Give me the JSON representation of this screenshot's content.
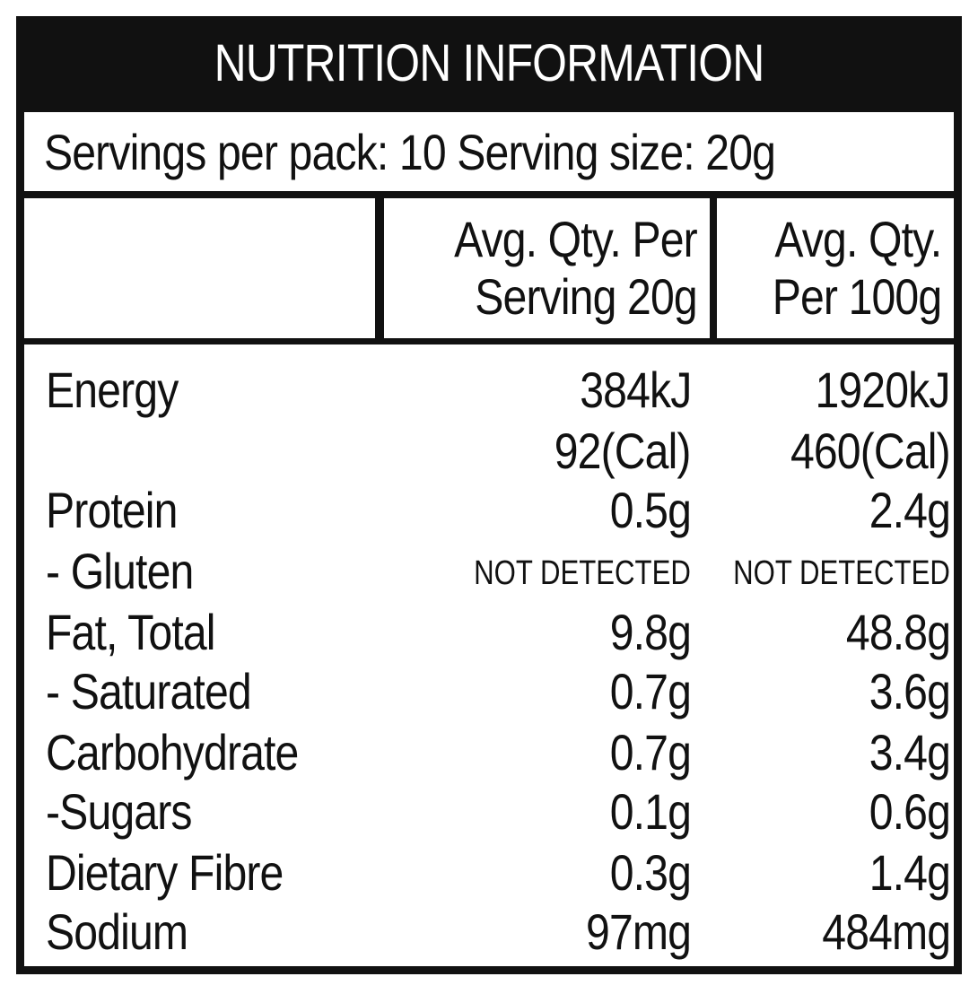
{
  "panel": {
    "title": "NUTRITION INFORMATION",
    "servings_line": "Servings per pack: 10 Serving size: 20g"
  },
  "columns": {
    "per_serving_line1": "Avg. Qty. Per",
    "per_serving_line2": "Serving 20g",
    "per_100g_line1": "Avg. Qty.",
    "per_100g_line2": "Per 100g"
  },
  "rows": [
    {
      "name": "Energy",
      "per_serving": "384kJ",
      "per_100g": "1920kJ"
    },
    {
      "name": "",
      "per_serving": "92(Cal)",
      "per_100g": "460(Cal)"
    },
    {
      "name": "Protein",
      "per_serving": "0.5g",
      "per_100g": "2.4g"
    },
    {
      "name": "- Gluten",
      "per_serving": "NOT DETECTED",
      "per_100g": "NOT DETECTED"
    },
    {
      "name": "Fat, Total",
      "per_serving": "9.8g",
      "per_100g": "48.8g"
    },
    {
      "name": "- Saturated",
      "per_serving": "0.7g",
      "per_100g": "3.6g"
    },
    {
      "name": "Carbohydrate",
      "per_serving": "0.7g",
      "per_100g": "3.4g"
    },
    {
      "name": "-Sugars",
      "per_serving": "0.1g",
      "per_100g": "0.6g"
    },
    {
      "name": "Dietary Fibre",
      "per_serving": "0.3g",
      "per_100g": "1.4g"
    },
    {
      "name": "Sodium",
      "per_serving": "97mg",
      "per_100g": "484mg"
    }
  ],
  "colors": {
    "frame": "#111111",
    "background": "#ffffff",
    "title_text": "#ffffff"
  }
}
